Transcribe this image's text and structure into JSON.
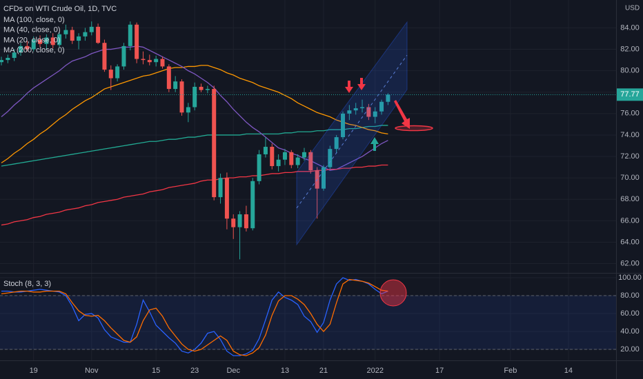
{
  "chart_data": [
    {
      "type": "candlestick",
      "title": "CFDs on WTI Crude Oil, 1D, TVC",
      "currency": "USD",
      "up_color": "#26a69a",
      "down_color": "#ef5350",
      "grid": true,
      "categories": [
        null,
        null,
        null,
        null,
        null,
        "19",
        null,
        null,
        null,
        null,
        null,
        null,
        null,
        null,
        "Nov",
        null,
        null,
        null,
        null,
        null,
        null,
        null,
        null,
        null,
        "15",
        null,
        null,
        null,
        null,
        null,
        "23",
        null,
        null,
        null,
        null,
        null,
        "Dec",
        null,
        null,
        null,
        null,
        null,
        null,
        null,
        "13",
        null,
        null,
        null,
        null,
        null,
        "21",
        null,
        null,
        null,
        null,
        null,
        null,
        null,
        "2022",
        null,
        null,
        null,
        null,
        null,
        null,
        null,
        null,
        null,
        "17",
        null,
        null,
        null,
        null,
        null,
        null,
        null,
        null,
        null,
        null,
        "Feb",
        null,
        null,
        null,
        null,
        null,
        null,
        null,
        null,
        "14"
      ],
      "open": [
        80.8,
        81.0,
        81.2,
        81.7,
        82.3,
        82.0,
        82.9,
        82.5,
        83.1,
        82.4,
        83.4,
        83.8,
        82.8,
        83.2,
        83.6,
        84.1,
        82.6,
        80.1,
        79.3,
        80.4,
        82.3,
        84.3,
        81.1,
        81.0,
        80.8,
        81.1,
        80.4,
        78.3,
        79.0,
        76.1,
        76.6,
        78.5,
        78.2,
        78.3,
        68.2,
        70.0,
        66.2,
        65.4,
        66.6,
        65.3,
        69.7,
        72.2,
        72.9,
        71.1,
        71.7,
        72.4,
        71.2,
        71.9,
        72.4,
        70.7,
        69.0,
        71.0,
        72.7,
        73.8,
        76.0,
        76.3,
        76.5,
        76.6,
        75.7,
        76.2,
        77.1,
        null,
        null,
        null,
        null,
        null,
        null,
        null,
        null,
        null,
        null,
        null,
        null,
        null,
        null,
        null,
        null,
        null,
        null,
        null,
        null,
        null,
        null,
        null,
        null,
        null,
        null,
        null,
        null
      ],
      "high": [
        81.3,
        81.5,
        82.0,
        82.6,
        82.8,
        83.2,
        83.3,
        83.4,
        83.5,
        83.6,
        84.3,
        84.1,
        83.5,
        84.0,
        84.6,
        84.4,
        82.9,
        80.5,
        80.6,
        82.6,
        84.6,
        84.5,
        81.8,
        81.5,
        81.4,
        81.3,
        80.6,
        79.5,
        79.2,
        77.0,
        78.9,
        78.8,
        78.6,
        78.6,
        70.4,
        70.5,
        66.6,
        66.9,
        67.4,
        70.0,
        72.6,
        73.8,
        73.2,
        72.2,
        72.7,
        72.6,
        72.2,
        72.8,
        72.6,
        71.0,
        71.2,
        73.0,
        74.0,
        76.2,
        76.8,
        77.0,
        77.3,
        76.9,
        76.6,
        77.3,
        77.9,
        null,
        null,
        null,
        null,
        null,
        null,
        null,
        null,
        null,
        null,
        null,
        null,
        null,
        null,
        null,
        null,
        null,
        null,
        null,
        null,
        null,
        null,
        null,
        null,
        null,
        null,
        null,
        null
      ],
      "low": [
        80.5,
        80.7,
        80.9,
        81.4,
        81.8,
        81.8,
        82.2,
        82.0,
        82.1,
        82.2,
        83.0,
        82.5,
        82.0,
        82.8,
        83.3,
        82.5,
        79.9,
        78.2,
        79.0,
        80.1,
        81.9,
        80.7,
        80.6,
        80.5,
        80.4,
        80.2,
        78.0,
        78.0,
        75.8,
        75.2,
        76.3,
        78.0,
        77.9,
        67.9,
        67.6,
        65.2,
        64.3,
        62.4,
        65.0,
        65.1,
        69.4,
        71.9,
        70.8,
        70.6,
        71.2,
        70.9,
        70.9,
        71.6,
        70.4,
        66.2,
        68.8,
        70.8,
        72.3,
        73.6,
        75.4,
        75.9,
        76.1,
        75.4,
        75.1,
        75.9,
        76.8,
        null,
        null,
        null,
        null,
        null,
        null,
        null,
        null,
        null,
        null,
        null,
        null,
        null,
        null,
        null,
        null,
        null,
        null,
        null,
        null,
        null,
        null,
        null,
        null,
        null,
        null,
        null,
        null
      ],
      "close": [
        81.0,
        81.2,
        81.7,
        82.3,
        82.0,
        82.9,
        82.5,
        83.1,
        82.4,
        83.4,
        83.8,
        82.8,
        83.2,
        83.6,
        84.1,
        82.6,
        80.1,
        79.3,
        80.4,
        82.3,
        84.3,
        81.1,
        81.0,
        80.8,
        81.1,
        80.4,
        78.3,
        79.0,
        76.1,
        76.6,
        78.5,
        78.2,
        78.3,
        68.2,
        70.0,
        66.2,
        65.4,
        66.6,
        65.3,
        69.7,
        72.2,
        72.9,
        71.1,
        71.7,
        72.4,
        71.2,
        71.9,
        72.4,
        70.7,
        69.0,
        71.0,
        72.7,
        73.8,
        76.0,
        76.3,
        76.5,
        76.6,
        75.7,
        76.2,
        77.1,
        77.77,
        null,
        null,
        null,
        null,
        null,
        null,
        null,
        null,
        null,
        null,
        null,
        null,
        null,
        null,
        null,
        null,
        null,
        null,
        null,
        null,
        null,
        null,
        null,
        null,
        null,
        null,
        null,
        null
      ],
      "series": [
        {
          "name": "MA (100, close, 0)",
          "color": "#22ab94",
          "values": [
            71.1,
            71.2,
            71.3,
            71.4,
            71.5,
            71.6,
            71.7,
            71.8,
            71.9,
            72.0,
            72.1,
            72.2,
            72.3,
            72.4,
            72.5,
            72.6,
            72.7,
            72.8,
            72.9,
            73.0,
            73.1,
            73.2,
            73.3,
            73.4,
            73.4,
            73.5,
            73.6,
            73.6,
            73.7,
            73.8,
            73.8,
            73.9,
            74.0,
            74.0,
            74.0,
            74.0,
            74.0,
            74.0,
            74.1,
            74.1,
            74.1,
            74.1,
            74.1,
            74.1,
            74.2,
            74.2,
            74.3,
            74.3,
            74.3,
            74.4,
            74.4,
            74.5,
            74.5,
            74.5,
            74.6,
            74.6,
            74.7,
            74.8,
            74.8,
            74.9,
            74.9,
            null,
            null,
            null,
            null,
            null,
            null,
            null,
            null,
            null,
            null,
            null,
            null,
            null,
            null,
            null,
            null,
            null,
            null,
            null,
            null,
            null,
            null,
            null,
            null,
            null,
            null,
            null,
            null
          ]
        },
        {
          "name": "MA (40, close, 0)",
          "color": "#ff9800",
          "values": [
            71.4,
            71.8,
            72.3,
            72.7,
            73.2,
            73.6,
            74.1,
            74.5,
            75.0,
            75.5,
            75.9,
            76.4,
            76.8,
            77.2,
            77.5,
            77.9,
            78.3,
            78.5,
            78.7,
            78.9,
            79.1,
            79.3,
            79.5,
            79.6,
            79.8,
            80.0,
            80.2,
            80.3,
            80.3,
            80.4,
            80.4,
            80.5,
            80.5,
            80.3,
            80.1,
            79.8,
            79.6,
            79.3,
            79.1,
            78.9,
            78.6,
            78.4,
            78.2,
            78.0,
            77.7,
            77.4,
            77.0,
            76.7,
            76.4,
            76.1,
            75.9,
            75.7,
            75.4,
            75.2,
            75.0,
            74.9,
            74.7,
            74.5,
            74.4,
            74.2,
            74.1,
            null,
            null,
            null,
            null,
            null,
            null,
            null,
            null,
            null,
            null,
            null,
            null,
            null,
            null,
            null,
            null,
            null,
            null,
            null,
            null,
            null,
            null,
            null,
            null,
            null,
            null,
            null,
            null
          ]
        },
        {
          "name": "MA (20, close, 0)",
          "color": "#7e57c2",
          "values": [
            75.7,
            76.2,
            76.8,
            77.3,
            77.9,
            78.4,
            78.8,
            79.2,
            79.6,
            80.0,
            80.5,
            80.9,
            81.1,
            81.3,
            81.6,
            81.8,
            82.0,
            82.0,
            82.1,
            82.2,
            82.2,
            82.3,
            82.2,
            81.9,
            81.6,
            81.3,
            81.0,
            80.7,
            80.4,
            80.0,
            79.7,
            79.3,
            78.9,
            78.4,
            77.7,
            77.1,
            76.4,
            75.8,
            75.2,
            74.7,
            74.3,
            73.8,
            73.3,
            72.8,
            72.6,
            72.3,
            72.1,
            71.8,
            71.6,
            71.3,
            71.0,
            70.7,
            70.8,
            71.1,
            71.4,
            71.7,
            72.0,
            72.4,
            72.8,
            73.2,
            73.5,
            null,
            null,
            null,
            null,
            null,
            null,
            null,
            null,
            null,
            null,
            null,
            null,
            null,
            null,
            null,
            null,
            null,
            null,
            null,
            null,
            null,
            null,
            null,
            null,
            null,
            null,
            null,
            null
          ]
        },
        {
          "name": "MA (200, close, 0)",
          "color": "#f23645",
          "values": [
            65.6,
            65.7,
            65.9,
            66.0,
            66.1,
            66.3,
            66.4,
            66.6,
            66.7,
            66.8,
            67.0,
            67.1,
            67.2,
            67.4,
            67.5,
            67.7,
            67.8,
            67.9,
            68.0,
            68.2,
            68.3,
            68.4,
            68.5,
            68.7,
            68.8,
            68.9,
            69.1,
            69.2,
            69.3,
            69.4,
            69.5,
            69.7,
            69.8,
            69.8,
            69.9,
            70.0,
            70.0,
            70.1,
            70.1,
            70.2,
            70.2,
            70.3,
            70.4,
            70.4,
            70.5,
            70.5,
            70.6,
            70.6,
            70.6,
            70.7,
            70.7,
            70.8,
            70.8,
            70.9,
            70.9,
            71.0,
            71.0,
            71.1,
            71.1,
            71.2,
            71.2,
            null,
            null,
            null,
            null,
            null,
            null,
            null,
            null,
            null,
            null,
            null,
            null,
            null,
            null,
            null,
            null,
            null,
            null,
            null,
            null,
            null,
            null,
            null,
            null,
            null,
            null,
            null,
            null
          ]
        }
      ],
      "ylim": [
        61.2,
        86.6
      ],
      "yticks": [
        {
          "value": 62,
          "label": "62.00"
        },
        {
          "value": 64,
          "label": "64.00"
        },
        {
          "value": 66,
          "label": "66.00"
        },
        {
          "value": 68,
          "label": "68.00"
        },
        {
          "value": 70,
          "label": "70.00"
        },
        {
          "value": 72,
          "label": "72.00"
        },
        {
          "value": 74,
          "label": "74.00"
        },
        {
          "value": 76,
          "label": "76.00"
        },
        {
          "value": 78,
          "label": "78.00"
        },
        {
          "value": 80,
          "label": "80.00"
        },
        {
          "value": 82,
          "label": "82.00"
        },
        {
          "value": 84,
          "label": "84.00"
        }
      ]
    },
    {
      "type": "stochastic",
      "title": "Stoch (8, 3, 3)",
      "band": [
        20,
        80
      ],
      "band_color": "#2962ff",
      "grid": true,
      "series": [
        {
          "color": "#2962ff",
          "values": [
            85,
            85,
            84,
            84,
            85,
            86,
            87,
            86,
            85,
            84,
            80,
            68,
            52,
            59,
            60,
            55,
            42,
            34,
            31,
            28,
            28,
            48,
            75,
            62,
            47,
            40,
            33,
            27,
            18,
            16,
            20,
            27,
            38,
            40,
            31,
            18,
            13,
            13,
            15,
            19,
            32,
            53,
            75,
            84,
            78,
            75,
            70,
            57,
            51,
            39,
            50,
            75,
            93,
            100,
            97,
            98,
            96,
            93,
            87,
            82,
            85,
            null,
            null,
            null,
            null,
            null,
            null,
            null,
            null,
            null,
            null,
            null,
            null,
            null,
            null,
            null,
            null,
            null,
            null,
            null,
            null,
            null,
            null,
            null,
            null,
            null,
            null,
            null,
            null
          ]
        },
        {
          "color": "#ff6d00",
          "values": [
            82,
            83,
            84,
            85,
            85,
            84,
            84,
            85,
            85,
            85,
            82,
            72,
            63,
            58,
            57,
            58,
            52,
            44,
            37,
            30,
            28,
            34,
            52,
            64,
            66,
            57,
            44,
            35,
            26,
            20,
            18,
            20,
            25,
            30,
            35,
            30,
            18,
            14,
            13,
            16,
            22,
            36,
            58,
            74,
            80,
            80,
            76,
            70,
            60,
            48,
            40,
            48,
            72,
            93,
            98,
            97,
            96,
            94,
            90,
            86,
            85,
            null,
            null,
            null,
            null,
            null,
            null,
            null,
            null,
            null,
            null,
            null,
            null,
            null,
            null,
            null,
            null,
            null,
            null,
            null,
            null,
            null,
            null,
            null,
            null,
            null,
            null,
            null,
            null
          ]
        }
      ],
      "ylim": [
        7.7,
        104.6
      ],
      "yticks": [
        {
          "value": 20,
          "label": "20.00"
        },
        {
          "value": 40,
          "label": "40.00"
        },
        {
          "value": 60,
          "label": "60.00"
        },
        {
          "value": 80,
          "label": "80.00"
        },
        {
          "value": 100,
          "label": "100.00"
        }
      ]
    }
  ]
}
